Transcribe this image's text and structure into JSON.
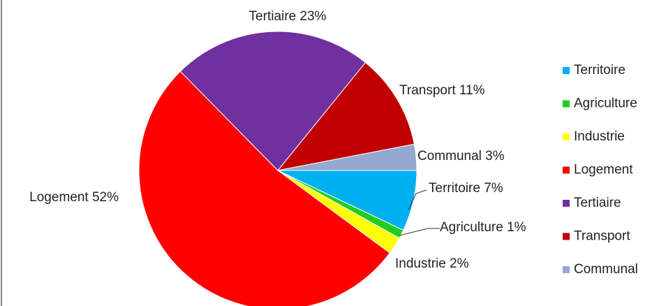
{
  "chart_data": {
    "type": "pie",
    "categories": [
      "Territoire",
      "Agriculture",
      "Industrie",
      "Logement",
      "Tertiaire",
      "Transport",
      "Communal"
    ],
    "values": [
      7,
      1,
      2,
      52,
      23,
      11,
      3
    ],
    "value_labels": [
      "7%",
      "1%",
      "2%",
      "52%",
      "23%",
      "11%",
      "3%"
    ],
    "colors": [
      "#00b0f0",
      "#22cc22",
      "#ffff00",
      "#ff0000",
      "#7030a0",
      "#c00000",
      "#95a9d0"
    ],
    "legend": "right"
  }
}
